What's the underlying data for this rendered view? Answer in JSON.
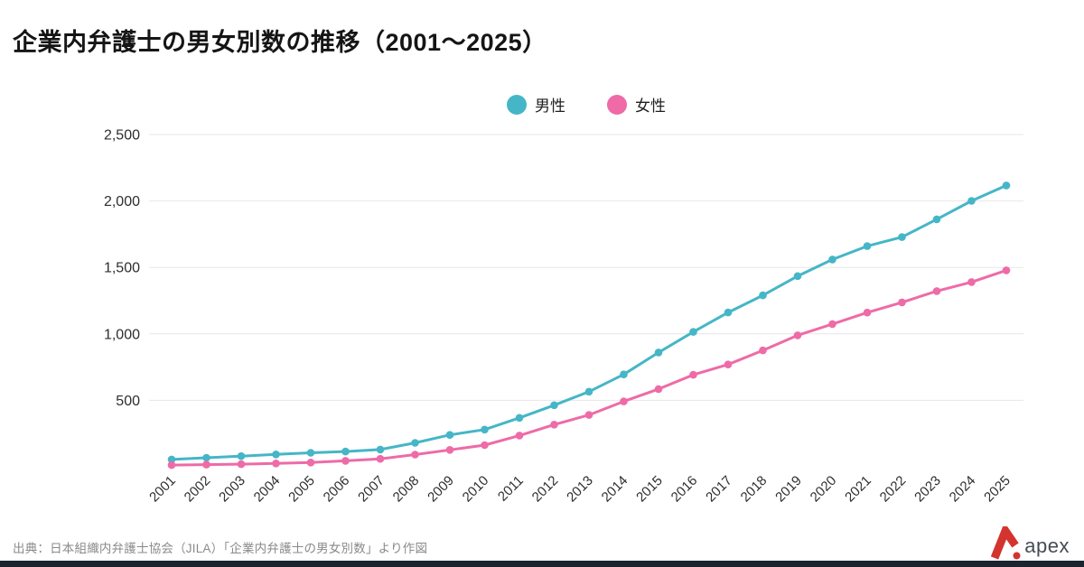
{
  "page": {
    "title": "企業内弁護士の男女別数の推移（2001～2025）",
    "source": "出典：日本組織内弁護士協会（JILA）「企業内弁護士の男女別数」より作図",
    "brand": {
      "name": "apex",
      "accent_color": "#d4342e",
      "text_color": "#454c55",
      "bar_color": "#1b2430"
    }
  },
  "chart_data": {
    "type": "line",
    "title": "企業内弁護士の男女別数の推移（2001～2025）",
    "x": [
      2001,
      2002,
      2003,
      2004,
      2005,
      2006,
      2007,
      2008,
      2009,
      2010,
      2011,
      2012,
      2013,
      2014,
      2015,
      2016,
      2017,
      2018,
      2019,
      2020,
      2021,
      2022,
      2023,
      2024,
      2025
    ],
    "series": [
      {
        "name": "男性",
        "color": "#45b6c7",
        "values": [
          55,
          68,
          80,
          93,
          105,
          115,
          130,
          180,
          240,
          280,
          368,
          463,
          565,
          695,
          860,
          1015,
          1161,
          1290,
          1435,
          1560,
          1660,
          1728,
          1862,
          2001,
          2117
        ]
      },
      {
        "name": "女性",
        "color": "#ee6ba7",
        "values": [
          13,
          16,
          20,
          25,
          32,
          45,
          60,
          92,
          127,
          163,
          235,
          317,
          390,
          492,
          585,
          692,
          770,
          876,
          989,
          1074,
          1160,
          1237,
          1322,
          1390,
          1478
        ]
      }
    ],
    "xlabel": "",
    "ylabel": "",
    "ylim": [
      0,
      2500
    ],
    "yticks": [
      500,
      1000,
      1500,
      2000,
      2500
    ],
    "grid": "horizontal",
    "gridline_color": "#e7e7e7",
    "tick_label_color": "#2e2e2e",
    "legend_position": "top-center"
  }
}
